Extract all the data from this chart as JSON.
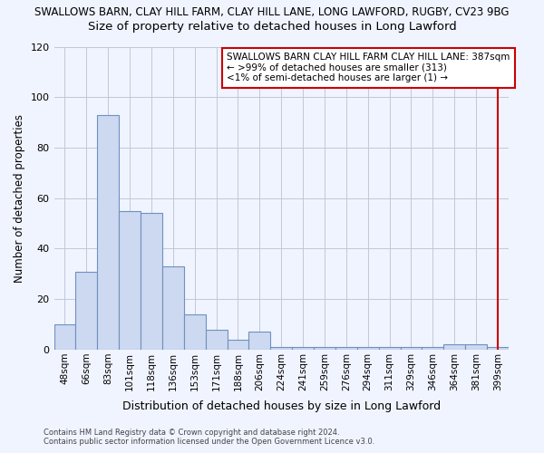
{
  "title": "SWALLOWS BARN, CLAY HILL FARM, CLAY HILL LANE, LONG LAWFORD, RUGBY, CV23 9BG",
  "subtitle": "Size of property relative to detached houses in Long Lawford",
  "xlabel": "Distribution of detached houses by size in Long Lawford",
  "ylabel": "Number of detached properties",
  "footer_line1": "Contains HM Land Registry data © Crown copyright and database right 2024.",
  "footer_line2": "Contains public sector information licensed under the Open Government Licence v3.0.",
  "categories": [
    "48sqm",
    "66sqm",
    "83sqm",
    "101sqm",
    "118sqm",
    "136sqm",
    "153sqm",
    "171sqm",
    "188sqm",
    "206sqm",
    "224sqm",
    "241sqm",
    "259sqm",
    "276sqm",
    "294sqm",
    "311sqm",
    "329sqm",
    "346sqm",
    "364sqm",
    "381sqm",
    "399sqm"
  ],
  "values": [
    10,
    31,
    93,
    55,
    54,
    33,
    14,
    8,
    4,
    7,
    1,
    1,
    1,
    1,
    1,
    1,
    1,
    1,
    2,
    2,
    1
  ],
  "bar_facecolor": "#ccd9f0",
  "bar_edgecolor": "#7090c0",
  "vline_color": "#cc0000",
  "vline_x": 20,
  "annotation_title": "SWALLOWS BARN CLAY HILL FARM CLAY HILL LANE: 387sqm",
  "annotation_line2": "← >99% of detached houses are smaller (313)",
  "annotation_line3": "<1% of semi-detached houses are larger (1) →",
  "annotation_box_facecolor": "#ffffff",
  "annotation_box_edgecolor": "#cc0000",
  "ylim": [
    0,
    120
  ],
  "yticks": [
    0,
    20,
    40,
    60,
    80,
    100,
    120
  ],
  "background_color": "#f0f4ff",
  "grid_color": "#c0c8d8"
}
